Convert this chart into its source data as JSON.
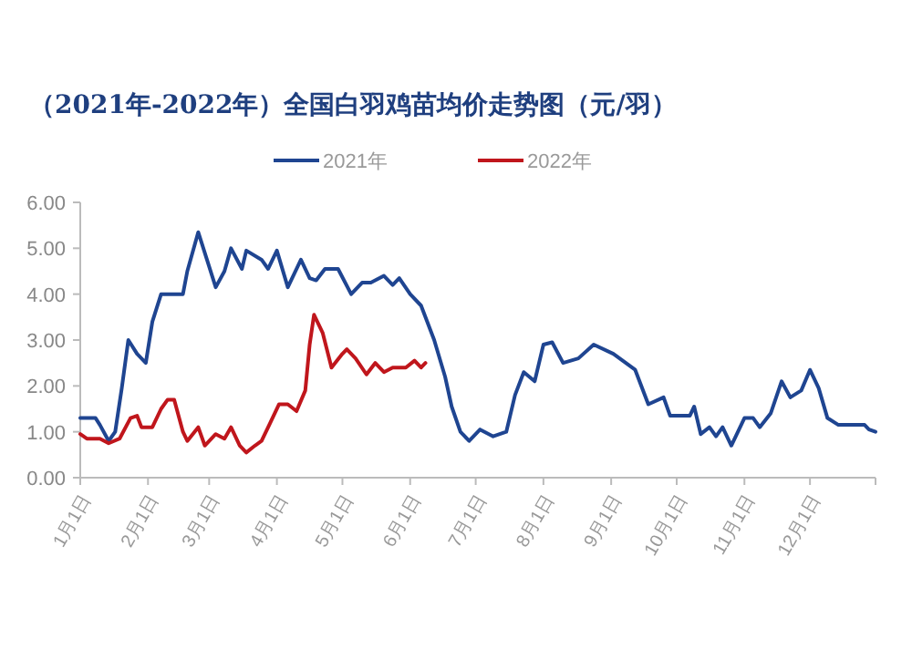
{
  "chart_data": {
    "type": "line",
    "title": "（2021年-2022年）全国白羽鸡苗均价走势图（元/羽）",
    "legend": "top",
    "xlim": [
      "--01-01",
      "--12-31"
    ],
    "xticks": [
      {
        "value": "--01-01",
        "label": "1月1日"
      },
      {
        "value": "--02-01",
        "label": "2月1日"
      },
      {
        "value": "--03-01",
        "label": "3月1日"
      },
      {
        "value": "--04-01",
        "label": "4月1日"
      },
      {
        "value": "--05-01",
        "label": "5月1日"
      },
      {
        "value": "--06-01",
        "label": "6月1日"
      },
      {
        "value": "--07-01",
        "label": "7月1日"
      },
      {
        "value": "--08-01",
        "label": "8月1日"
      },
      {
        "value": "--09-01",
        "label": "9月1日"
      },
      {
        "value": "--10-01",
        "label": "10月1日"
      },
      {
        "value": "--11-01",
        "label": "11月1日"
      },
      {
        "value": "--12-01",
        "label": "12月1日"
      },
      {
        "value": "--12-31",
        "label": null
      }
    ],
    "ylim": [
      0,
      6
    ],
    "yticks": [
      {
        "value": 0,
        "label": "0.00"
      },
      {
        "value": 1,
        "label": "1.00"
      },
      {
        "value": 2,
        "label": "2.00"
      },
      {
        "value": 3,
        "label": "3.00"
      },
      {
        "value": 4,
        "label": "4.00"
      },
      {
        "value": 5,
        "label": "5.00"
      },
      {
        "value": 6,
        "label": "6.00"
      }
    ],
    "series": [
      {
        "name": "2021年",
        "color": "#1f4591",
        "x": [
          "--01-01",
          "--01-08",
          "--01-10",
          "--01-14",
          "--01-17",
          "--01-20",
          "--01-23",
          "--01-27",
          "--01-31",
          "--02-03",
          "--02-07",
          "--02-17",
          "--02-19",
          "--02-24",
          "--02-28",
          "--03-04",
          "--03-08",
          "--03-11",
          "--03-16",
          "--03-18",
          "--03-25",
          "--03-28",
          "--04-01",
          "--04-06",
          "--04-12",
          "--04-16",
          "--04-19",
          "--04-23",
          "--04-29",
          "--05-05",
          "--05-10",
          "--05-14",
          "--05-20",
          "--05-24",
          "--05-27",
          "--06-01",
          "--06-06",
          "--06-12",
          "--06-17",
          "--06-20",
          "--06-24",
          "--06-28",
          "--07-03",
          "--07-09",
          "--07-15",
          "--07-19",
          "--07-23",
          "--07-28",
          "--08-01",
          "--08-05",
          "--08-10",
          "--08-17",
          "--08-24",
          "--09-02",
          "--09-12",
          "--09-18",
          "--09-25",
          "--09-28",
          "--10-07",
          "--10-09",
          "--10-12",
          "--10-16",
          "--10-19",
          "--10-22",
          "--10-26",
          "--11-01",
          "--11-05",
          "--11-08",
          "--11-13",
          "--11-18",
          "--11-22",
          "--11-27",
          "--12-01",
          "--12-05",
          "--12-09",
          "--12-14",
          "--12-21",
          "--12-26",
          "--12-28",
          "--12-31"
        ],
        "values": [
          1.3,
          1.3,
          1.15,
          0.8,
          1.0,
          1.95,
          3.0,
          2.7,
          2.5,
          3.4,
          4.0,
          4.0,
          4.5,
          5.35,
          4.75,
          4.15,
          4.5,
          5.0,
          4.55,
          4.95,
          4.75,
          4.55,
          4.95,
          4.15,
          4.75,
          4.35,
          4.3,
          4.55,
          4.55,
          4.0,
          4.25,
          4.25,
          4.4,
          4.2,
          4.35,
          4.0,
          3.75,
          3.0,
          2.2,
          1.55,
          1.0,
          0.8,
          1.05,
          0.9,
          1.0,
          1.8,
          2.3,
          2.1,
          2.9,
          2.95,
          2.5,
          2.6,
          2.9,
          2.7,
          2.35,
          1.6,
          1.75,
          1.35,
          1.35,
          1.55,
          0.95,
          1.1,
          0.9,
          1.1,
          0.7,
          1.3,
          1.3,
          1.1,
          1.4,
          2.1,
          1.75,
          1.9,
          2.35,
          1.95,
          1.3,
          1.15,
          1.15,
          1.15,
          1.05,
          1.0
        ]
      },
      {
        "name": "2022年",
        "color": "#c0161c",
        "x": [
          "--01-01",
          "--01-04",
          "--01-10",
          "--01-14",
          "--01-19",
          "--01-24",
          "--01-27",
          "--01-29",
          "--02-03",
          "--02-07",
          "--02-10",
          "--02-13",
          "--02-17",
          "--02-19",
          "--02-24",
          "--02-27",
          "--03-04",
          "--03-08",
          "--03-11",
          "--03-15",
          "--03-18",
          "--03-22",
          "--03-25",
          "--03-29",
          "--04-02",
          "--04-06",
          "--04-10",
          "--04-14",
          "--04-16",
          "--04-18",
          "--04-22",
          "--04-26",
          "--05-01",
          "--05-03",
          "--05-07",
          "--05-12",
          "--05-16",
          "--05-20",
          "--05-24",
          "--05-30",
          "--06-03",
          "--06-06",
          "--06-08"
        ],
        "values": [
          0.95,
          0.85,
          0.85,
          0.75,
          0.85,
          1.3,
          1.35,
          1.1,
          1.1,
          1.5,
          1.7,
          1.7,
          1.0,
          0.8,
          1.1,
          0.7,
          0.95,
          0.85,
          1.1,
          0.7,
          0.55,
          0.7,
          0.8,
          1.2,
          1.6,
          1.6,
          1.45,
          1.9,
          2.9,
          3.55,
          3.15,
          2.4,
          2.7,
          2.8,
          2.6,
          2.25,
          2.5,
          2.3,
          2.4,
          2.4,
          2.55,
          2.4,
          2.5
        ]
      }
    ]
  }
}
